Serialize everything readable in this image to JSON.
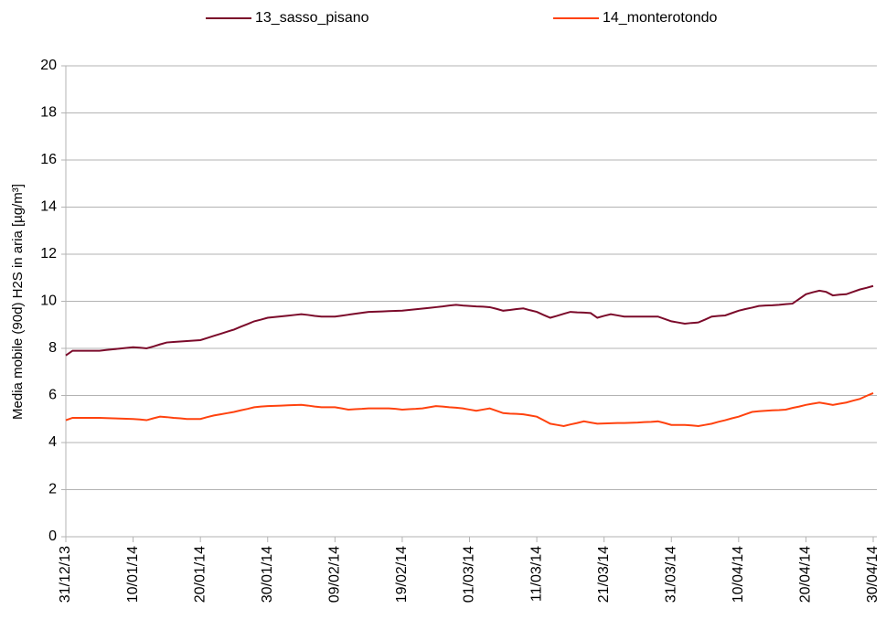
{
  "chart_data": {
    "type": "line",
    "y_label": "Media mobile (90d) H2S in aria [µg/m³]",
    "categories": [
      "31/12/13",
      null,
      null,
      null,
      null,
      null,
      null,
      null,
      null,
      null,
      "10/01/14",
      null,
      null,
      null,
      null,
      null,
      null,
      null,
      null,
      null,
      "20/01/14",
      null,
      null,
      null,
      null,
      null,
      null,
      null,
      null,
      null,
      "30/01/14",
      null,
      null,
      null,
      null,
      null,
      null,
      null,
      null,
      null,
      "09/02/14",
      null,
      null,
      null,
      null,
      null,
      null,
      null,
      null,
      null,
      "19/02/14",
      null,
      null,
      null,
      null,
      null,
      null,
      null,
      null,
      null,
      "01/03/14",
      null,
      null,
      null,
      null,
      null,
      null,
      null,
      null,
      null,
      "11/03/14",
      null,
      null,
      null,
      null,
      null,
      null,
      null,
      null,
      null,
      "21/03/14",
      null,
      null,
      null,
      null,
      null,
      null,
      null,
      null,
      null,
      "31/03/14",
      null,
      null,
      null,
      null,
      null,
      null,
      null,
      null,
      null,
      "10/04/14",
      null,
      null,
      null,
      null,
      null,
      null,
      null,
      null,
      null,
      "20/04/14",
      null,
      null,
      null,
      null,
      null,
      null,
      null,
      null,
      null,
      "30/04/14"
    ],
    "series": [
      {
        "name": "13_sasso_pisano",
        "color": "#7b0a2a",
        "values": [
          7.7,
          7.9,
          7.9,
          7.9,
          7.9,
          7.9,
          7.93,
          7.96,
          7.99,
          8.02,
          8.05,
          8.03,
          8.0,
          8.08,
          8.17,
          8.25,
          8.27,
          8.29,
          8.31,
          8.33,
          8.35,
          8.44,
          8.53,
          8.62,
          8.71,
          8.8,
          8.92,
          9.03,
          9.15,
          9.22,
          9.3,
          9.33,
          9.36,
          9.39,
          9.42,
          9.45,
          9.42,
          9.38,
          9.35,
          9.35,
          9.35,
          9.39,
          9.43,
          9.47,
          9.51,
          9.55,
          9.56,
          9.57,
          9.58,
          9.59,
          9.6,
          9.63,
          9.66,
          9.69,
          9.72,
          9.75,
          9.78,
          9.82,
          9.85,
          9.82,
          9.8,
          9.78,
          9.77,
          9.75,
          9.68,
          9.6,
          9.63,
          9.67,
          9.7,
          9.62,
          9.55,
          9.42,
          9.3,
          9.38,
          9.47,
          9.55,
          9.53,
          9.52,
          9.5,
          9.3,
          9.38,
          9.45,
          9.4,
          9.35,
          9.35,
          9.35,
          9.35,
          9.35,
          9.35,
          9.25,
          9.15,
          9.1,
          9.05,
          9.08,
          9.1,
          9.22,
          9.35,
          9.38,
          9.4,
          9.5,
          9.6,
          9.67,
          9.73,
          9.8,
          9.82,
          9.83,
          9.85,
          9.88,
          9.9,
          10.1,
          10.3,
          10.38,
          10.45,
          10.4,
          10.25,
          10.28,
          10.3,
          10.4,
          10.5,
          10.57,
          10.65
        ]
      },
      {
        "name": "14_monterotondo",
        "color": "#ff420e",
        "values": [
          4.95,
          5.05,
          5.05,
          5.05,
          5.05,
          5.05,
          5.04,
          5.03,
          5.02,
          5.01,
          5.0,
          4.98,
          4.95,
          5.03,
          5.1,
          5.08,
          5.05,
          5.03,
          5.0,
          5.0,
          5.0,
          5.08,
          5.15,
          5.2,
          5.25,
          5.3,
          5.37,
          5.43,
          5.5,
          5.53,
          5.55,
          5.56,
          5.57,
          5.58,
          5.59,
          5.6,
          5.57,
          5.53,
          5.5,
          5.5,
          5.5,
          5.45,
          5.4,
          5.42,
          5.43,
          5.45,
          5.45,
          5.45,
          5.45,
          5.43,
          5.4,
          5.42,
          5.43,
          5.45,
          5.5,
          5.55,
          5.53,
          5.5,
          5.48,
          5.45,
          5.4,
          5.35,
          5.4,
          5.45,
          5.35,
          5.25,
          5.23,
          5.22,
          5.2,
          5.15,
          5.1,
          4.95,
          4.8,
          4.75,
          4.7,
          4.77,
          4.83,
          4.9,
          4.85,
          4.8,
          4.81,
          4.82,
          4.83,
          4.83,
          4.84,
          4.85,
          4.87,
          4.88,
          4.9,
          4.83,
          4.75,
          4.75,
          4.75,
          4.73,
          4.7,
          4.75,
          4.8,
          4.88,
          4.95,
          5.03,
          5.1,
          5.2,
          5.3,
          5.33,
          5.35,
          5.37,
          5.38,
          5.4,
          5.47,
          5.53,
          5.6,
          5.65,
          5.7,
          5.65,
          5.6,
          5.65,
          5.7,
          5.78,
          5.85,
          5.98,
          6.1
        ]
      }
    ],
    "ylim": [
      0,
      20
    ],
    "yticks": [
      0,
      2,
      4,
      6,
      8,
      10,
      12,
      14,
      16,
      18,
      20
    ],
    "grid": true,
    "legend": "top"
  }
}
